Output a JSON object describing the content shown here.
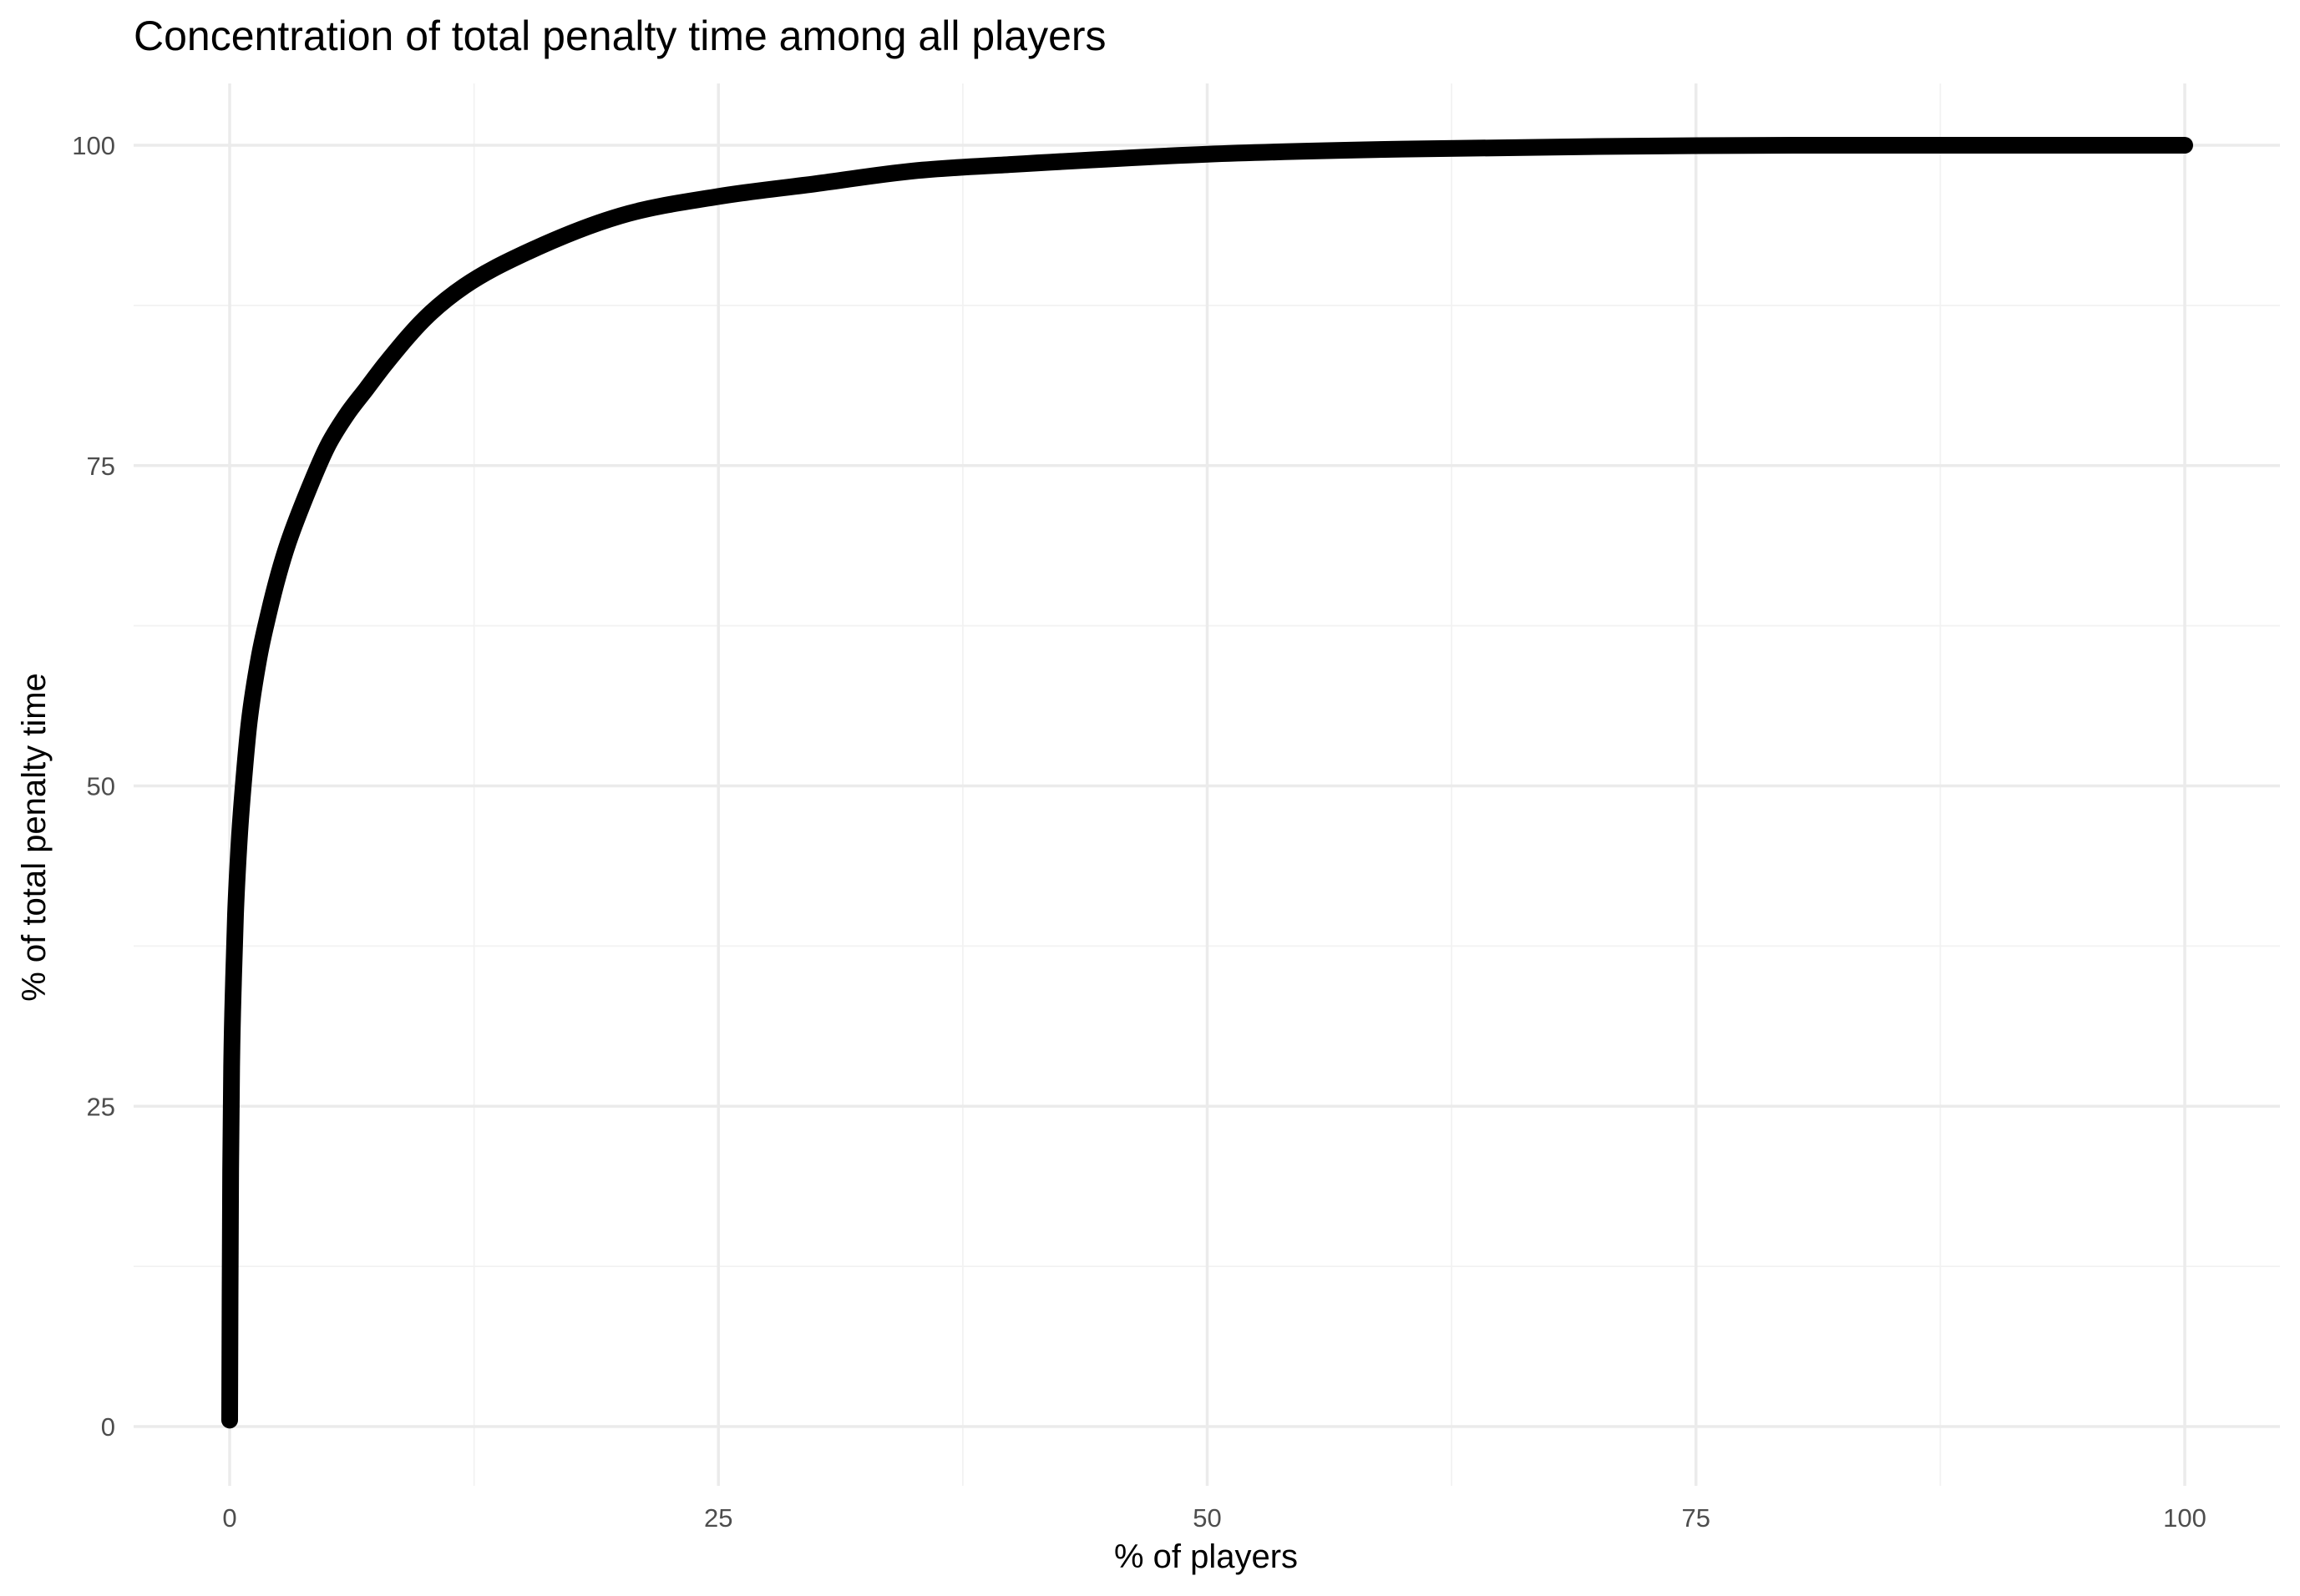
{
  "chart_data": {
    "type": "line",
    "title": "Concentration of total penalty time among all players",
    "xlabel": "% of players",
    "ylabel": "% of total penalty time",
    "xlim": [
      -5,
      105
    ],
    "ylim": [
      -5,
      105
    ],
    "x_ticks": [
      0,
      25,
      50,
      75,
      100
    ],
    "y_ticks": [
      0,
      25,
      50,
      75,
      100
    ],
    "x_tick_labels": [
      "0",
      "25",
      "50",
      "75",
      "100"
    ],
    "y_tick_labels": [
      "0",
      "25",
      "50",
      "75",
      "100"
    ],
    "grid": true,
    "legend": "none",
    "line_color": "#000000",
    "series": [
      {
        "x": [
          0,
          0.02,
          0.05,
          0.1,
          0.2,
          0.3,
          0.5,
          0.75,
          1,
          1.5,
          2,
          2.5,
          3,
          4,
          5,
          6,
          7,
          8,
          10,
          12,
          15,
          20,
          25,
          30,
          35,
          40,
          50,
          60,
          70,
          80,
          90,
          100
        ],
        "y": [
          0.5,
          10,
          20,
          28,
          35,
          40,
          46,
          51,
          55,
          60,
          63.5,
          66.5,
          69,
          73,
          76.5,
          79,
          81,
          83,
          86.5,
          89,
          91.5,
          94.5,
          96,
          97,
          98,
          98.5,
          99.3,
          99.7,
          99.9,
          100,
          100,
          100
        ]
      }
    ]
  }
}
